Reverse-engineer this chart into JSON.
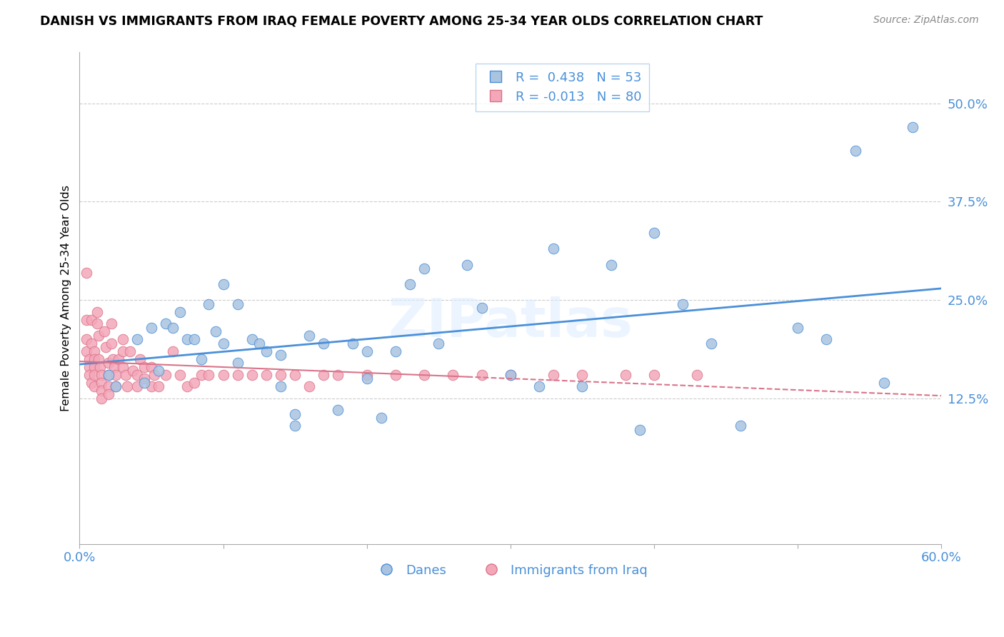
{
  "title": "DANISH VS IMMIGRANTS FROM IRAQ FEMALE POVERTY AMONG 25-34 YEAR OLDS CORRELATION CHART",
  "source": "Source: ZipAtlas.com",
  "ylabel": "Female Poverty Among 25-34 Year Olds",
  "ytick_labels": [
    "50.0%",
    "37.5%",
    "25.0%",
    "12.5%"
  ],
  "ytick_values": [
    0.5,
    0.375,
    0.25,
    0.125
  ],
  "xlim": [
    0.0,
    0.6
  ],
  "ylim": [
    -0.06,
    0.565
  ],
  "legend_blue_r": "0.438",
  "legend_blue_n": "53",
  "legend_pink_r": "-0.013",
  "legend_pink_n": "80",
  "legend_blue_label": "Danes",
  "legend_pink_label": "Immigrants from Iraq",
  "blue_scatter_color": "#aac4e0",
  "pink_scatter_color": "#f4a7b9",
  "blue_edge_color": "#4a90d9",
  "pink_edge_color": "#d9748a",
  "blue_line_color": "#4a90d9",
  "pink_line_color": "#d9748a",
  "watermark": "ZIPatlas",
  "danes_x": [
    0.02,
    0.025,
    0.04,
    0.045,
    0.05,
    0.055,
    0.06,
    0.065,
    0.07,
    0.075,
    0.08,
    0.085,
    0.09,
    0.095,
    0.1,
    0.1,
    0.11,
    0.11,
    0.12,
    0.125,
    0.13,
    0.14,
    0.14,
    0.15,
    0.15,
    0.16,
    0.17,
    0.18,
    0.19,
    0.2,
    0.2,
    0.21,
    0.22,
    0.23,
    0.24,
    0.25,
    0.27,
    0.28,
    0.3,
    0.32,
    0.33,
    0.35,
    0.37,
    0.39,
    0.4,
    0.42,
    0.44,
    0.46,
    0.5,
    0.52,
    0.54,
    0.56,
    0.58
  ],
  "danes_y": [
    0.155,
    0.14,
    0.2,
    0.145,
    0.215,
    0.16,
    0.22,
    0.215,
    0.235,
    0.2,
    0.2,
    0.175,
    0.245,
    0.21,
    0.27,
    0.195,
    0.245,
    0.17,
    0.2,
    0.195,
    0.185,
    0.18,
    0.14,
    0.105,
    0.09,
    0.205,
    0.195,
    0.11,
    0.195,
    0.185,
    0.15,
    0.1,
    0.185,
    0.27,
    0.29,
    0.195,
    0.295,
    0.24,
    0.155,
    0.14,
    0.315,
    0.14,
    0.295,
    0.085,
    0.335,
    0.245,
    0.195,
    0.09,
    0.215,
    0.2,
    0.44,
    0.145,
    0.47
  ],
  "iraq_x": [
    0.005,
    0.005,
    0.005,
    0.005,
    0.007,
    0.007,
    0.007,
    0.008,
    0.008,
    0.008,
    0.01,
    0.01,
    0.01,
    0.01,
    0.01,
    0.012,
    0.012,
    0.013,
    0.013,
    0.014,
    0.015,
    0.015,
    0.015,
    0.015,
    0.017,
    0.018,
    0.02,
    0.02,
    0.02,
    0.02,
    0.022,
    0.022,
    0.023,
    0.024,
    0.025,
    0.025,
    0.027,
    0.03,
    0.03,
    0.03,
    0.032,
    0.033,
    0.035,
    0.037,
    0.04,
    0.04,
    0.042,
    0.045,
    0.045,
    0.05,
    0.05,
    0.052,
    0.055,
    0.06,
    0.065,
    0.07,
    0.075,
    0.08,
    0.085,
    0.09,
    0.1,
    0.11,
    0.12,
    0.13,
    0.14,
    0.15,
    0.16,
    0.17,
    0.18,
    0.2,
    0.22,
    0.24,
    0.26,
    0.28,
    0.3,
    0.33,
    0.35,
    0.38,
    0.4,
    0.43
  ],
  "iraq_y": [
    0.285,
    0.225,
    0.2,
    0.185,
    0.175,
    0.165,
    0.155,
    0.145,
    0.225,
    0.195,
    0.185,
    0.175,
    0.165,
    0.155,
    0.14,
    0.235,
    0.22,
    0.205,
    0.175,
    0.165,
    0.155,
    0.145,
    0.135,
    0.125,
    0.21,
    0.19,
    0.17,
    0.155,
    0.14,
    0.13,
    0.22,
    0.195,
    0.175,
    0.165,
    0.155,
    0.14,
    0.175,
    0.2,
    0.185,
    0.165,
    0.155,
    0.14,
    0.185,
    0.16,
    0.155,
    0.14,
    0.175,
    0.165,
    0.15,
    0.14,
    0.165,
    0.155,
    0.14,
    0.155,
    0.185,
    0.155,
    0.14,
    0.145,
    0.155,
    0.155,
    0.155,
    0.155,
    0.155,
    0.155,
    0.155,
    0.155,
    0.14,
    0.155,
    0.155,
    0.155,
    0.155,
    0.155,
    0.155,
    0.155,
    0.155,
    0.155,
    0.155,
    0.155,
    0.155,
    0.155
  ]
}
